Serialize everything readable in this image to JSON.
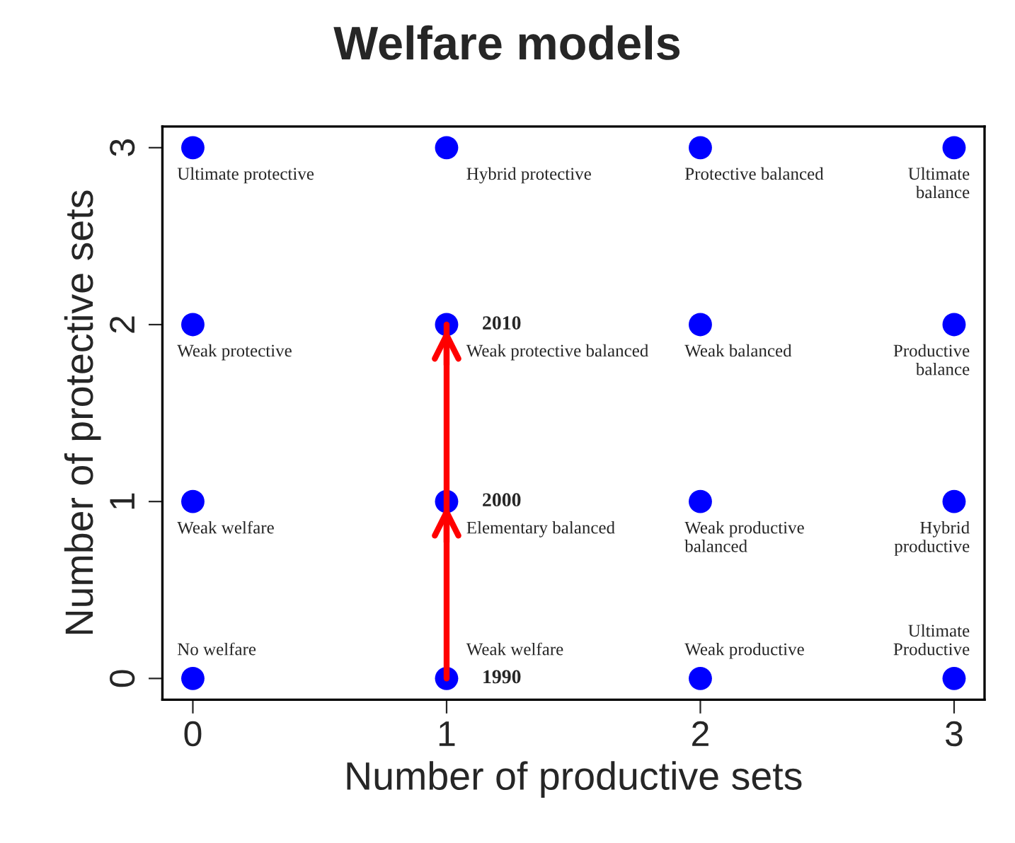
{
  "chart_data": {
    "type": "scatter",
    "title": "Welfare models",
    "xlabel": "Number of productive sets",
    "ylabel": "Number of protective sets",
    "xlim": [
      -0.12,
      3.12
    ],
    "ylim": [
      -0.12,
      3.12
    ],
    "xticks": [
      0,
      1,
      2,
      3
    ],
    "yticks": [
      0,
      1,
      2,
      3
    ],
    "grid": false,
    "marker": "circle",
    "series": [
      {
        "color": "#0000ff",
        "x": [
          0,
          1,
          2,
          3,
          0,
          1,
          2,
          3,
          0,
          1,
          2,
          3,
          0,
          1,
          2,
          3
        ],
        "values": [
          3,
          3,
          3,
          3,
          2,
          2,
          2,
          2,
          1,
          1,
          1,
          1,
          0,
          0,
          0,
          0
        ]
      },
      {
        "type": "line",
        "marker": "none",
        "color": "#ff0000",
        "x": [
          1,
          1,
          1
        ],
        "values": [
          0,
          1,
          2
        ]
      }
    ],
    "annotations": [
      {
        "text": "Ultimate protective",
        "x": 0,
        "y": 3
      },
      {
        "text": "Hybrid protective",
        "x": 1,
        "y": 3
      },
      {
        "text": "Protective balanced",
        "x": 2,
        "y": 3
      },
      {
        "text": "Ultimate\nbalance",
        "x": 3,
        "y": 3
      },
      {
        "text": "Weak protective",
        "x": 0,
        "y": 2
      },
      {
        "text": "Weak protective balanced",
        "x": 1,
        "y": 2
      },
      {
        "text": "Weak balanced",
        "x": 2,
        "y": 2
      },
      {
        "text": "Productive\nbalance",
        "x": 3,
        "y": 2
      },
      {
        "text": "Weak welfare",
        "x": 0,
        "y": 1
      },
      {
        "text": "Elementary balanced",
        "x": 1,
        "y": 1
      },
      {
        "text": "Weak productive\nbalanced",
        "x": 2,
        "y": 1
      },
      {
        "text": "Hybrid\nproductive",
        "x": 3,
        "y": 1
      },
      {
        "text": "No welfare",
        "x": 0,
        "y": 0
      },
      {
        "text": "Weak welfare",
        "x": 1,
        "y": 0
      },
      {
        "text": "Weak productive",
        "x": 2,
        "y": 0
      },
      {
        "text": "Ultimate\nProductive",
        "x": 3,
        "y": 0
      },
      {
        "text": "1990",
        "x": 1,
        "y": 0
      },
      {
        "text": "2000",
        "x": 1,
        "y": 1
      },
      {
        "text": "2010",
        "x": 1,
        "y": 2
      }
    ]
  }
}
